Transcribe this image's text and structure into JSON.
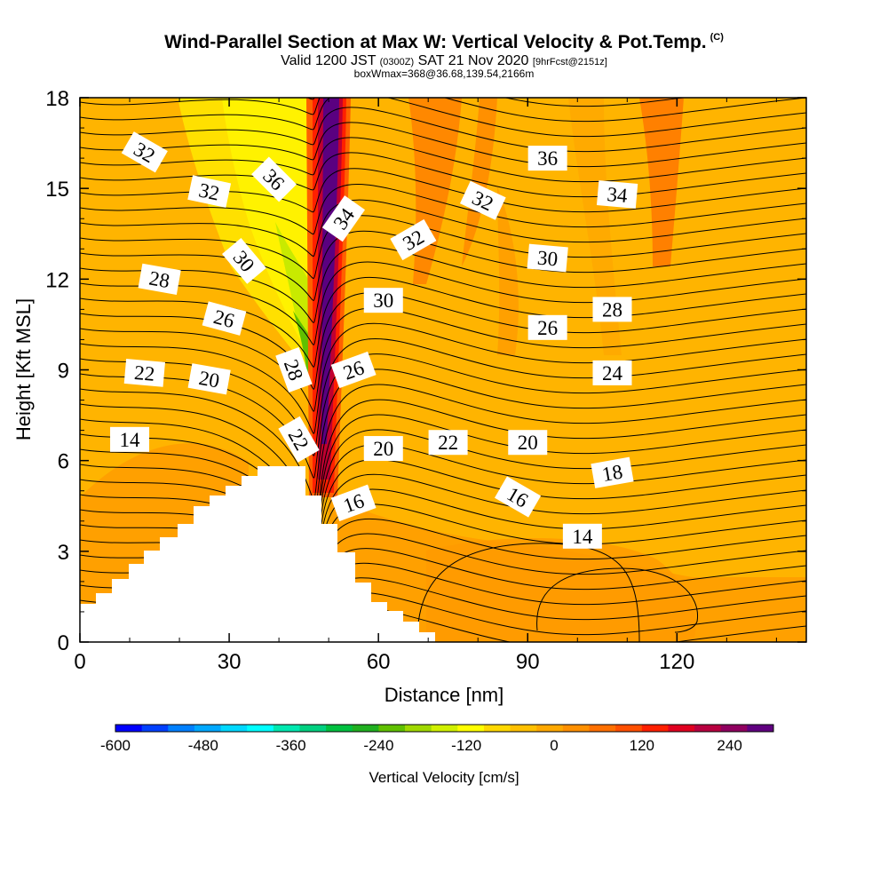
{
  "header": {
    "title": "Wind-Parallel Section at Max W: Vertical Velocity & Pot.Temp.",
    "copyright": "(C)",
    "valid_prefix": "Valid 1200 JST",
    "utc": "(0300Z)",
    "valid_date": "SAT 21 Nov 2020",
    "forecast": "[9hrFcst@2151z]",
    "box_info": "boxWmax=368@36.68,139.54,2166m"
  },
  "chart_data": {
    "type": "heatmap",
    "title": "Wind-Parallel Section at Max W: Vertical Velocity & Pot.Temp.",
    "xlabel": "Distance [nm]",
    "ylabel": "Height [Kft MSL]",
    "xlim": [
      0,
      146
    ],
    "ylim": [
      0,
      18
    ],
    "x_ticks": [
      "0",
      "30",
      "60",
      "90",
      "120"
    ],
    "y_ticks": [
      "0",
      "3",
      "6",
      "9",
      "12",
      "15",
      "18"
    ],
    "colorbar": {
      "label": "Vertical Velocity [cm/s]",
      "tick_labels": [
        "-600",
        "-480",
        "-360",
        "-240",
        "-120",
        "0",
        "120",
        "240"
      ],
      "range": [
        -600,
        300
      ],
      "colors": [
        "#0000ff",
        "#0040ff",
        "#0080ff",
        "#00a8ff",
        "#00d8ff",
        "#00ffff",
        "#00e8b0",
        "#00d080",
        "#00c040",
        "#20b020",
        "#60c000",
        "#a0d800",
        "#d0f000",
        "#ffff00",
        "#ffd800",
        "#ffc000",
        "#ffa800",
        "#ff9000",
        "#ff7000",
        "#ff5000",
        "#ff2000",
        "#e00020",
        "#b80040",
        "#900060",
        "#600080"
      ]
    },
    "theta_contour_labels": [
      {
        "label": "32",
        "x": 13,
        "y": 16.2,
        "angle": 30
      },
      {
        "label": "32",
        "x": 26,
        "y": 14.9,
        "angle": 12
      },
      {
        "label": "36",
        "x": 39,
        "y": 15.3,
        "angle": 45
      },
      {
        "label": "30",
        "x": 33,
        "y": 12.6,
        "angle": 50
      },
      {
        "label": "34",
        "x": 53,
        "y": 14.0,
        "angle": -55
      },
      {
        "label": "32",
        "x": 67,
        "y": 13.3,
        "angle": -30
      },
      {
        "label": "32",
        "x": 81,
        "y": 14.6,
        "angle": 25
      },
      {
        "label": "36",
        "x": 94,
        "y": 16.0,
        "angle": 0
      },
      {
        "label": "34",
        "x": 108,
        "y": 14.8,
        "angle": 5
      },
      {
        "label": "30",
        "x": 94,
        "y": 12.7,
        "angle": 5
      },
      {
        "label": "28",
        "x": 16,
        "y": 12.0,
        "angle": 10
      },
      {
        "label": "26",
        "x": 29,
        "y": 10.7,
        "angle": 15
      },
      {
        "label": "30",
        "x": 61,
        "y": 11.3,
        "angle": 0
      },
      {
        "label": "26",
        "x": 94,
        "y": 10.4,
        "angle": 0
      },
      {
        "label": "28",
        "x": 107,
        "y": 11.0,
        "angle": 0
      },
      {
        "label": "22",
        "x": 13,
        "y": 8.9,
        "angle": 5
      },
      {
        "label": "20",
        "x": 26,
        "y": 8.7,
        "angle": 10
      },
      {
        "label": "28",
        "x": 43,
        "y": 9.0,
        "angle": 70
      },
      {
        "label": "26",
        "x": 55,
        "y": 9.0,
        "angle": -20
      },
      {
        "label": "24",
        "x": 107,
        "y": 8.9,
        "angle": 0
      },
      {
        "label": "14",
        "x": 10,
        "y": 6.7,
        "angle": 0
      },
      {
        "label": "22",
        "x": 44,
        "y": 6.7,
        "angle": 60
      },
      {
        "label": "20",
        "x": 61,
        "y": 6.4,
        "angle": 0
      },
      {
        "label": "22",
        "x": 74,
        "y": 6.6,
        "angle": 0
      },
      {
        "label": "20",
        "x": 90,
        "y": 6.6,
        "angle": 0
      },
      {
        "label": "18",
        "x": 107,
        "y": 5.6,
        "angle": -10
      },
      {
        "label": "16",
        "x": 55,
        "y": 4.6,
        "angle": -20
      },
      {
        "label": "16",
        "x": 88,
        "y": 4.8,
        "angle": 30
      },
      {
        "label": "14",
        "x": 101,
        "y": 3.5,
        "angle": 0
      }
    ]
  }
}
